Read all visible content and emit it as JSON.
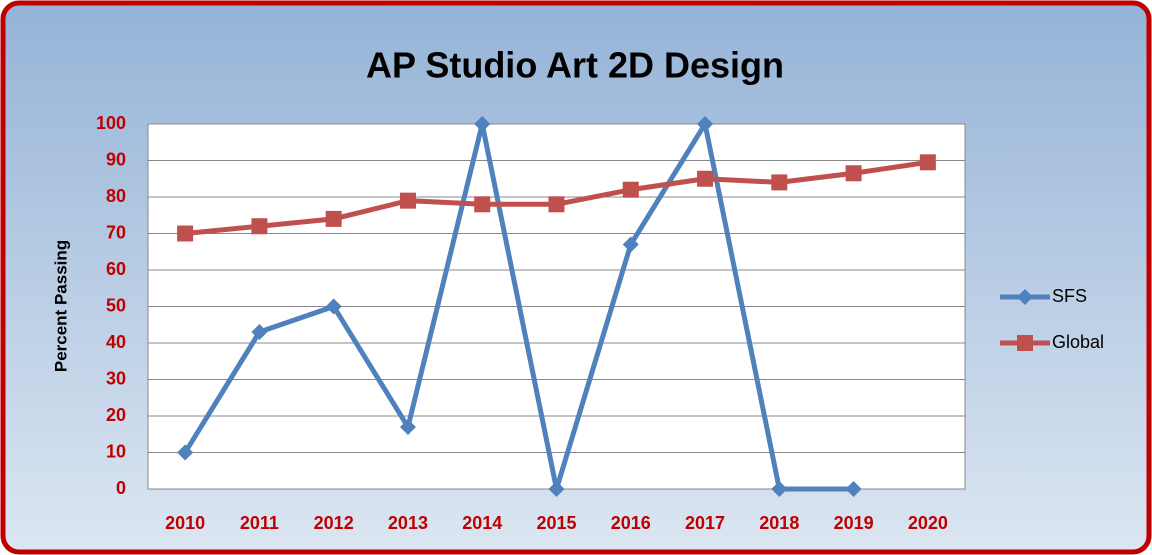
{
  "chart_data": {
    "type": "line",
    "title": "AP Studio Art 2D Design",
    "y_label": "Percent Passing",
    "categories": [
      "2010",
      "2011",
      "2012",
      "2013",
      "2014",
      "2015",
      "2016",
      "2017",
      "2018",
      "2019",
      "2020"
    ],
    "series": [
      {
        "name": "SFS",
        "color": "#4f81bd",
        "marker": "diamond",
        "values": [
          10,
          43,
          50,
          17,
          100,
          0,
          67,
          100,
          0,
          0,
          null
        ]
      },
      {
        "name": "Global",
        "color": "#c0504d",
        "marker": "square",
        "values": [
          70,
          72,
          74,
          79,
          78,
          78,
          82,
          85,
          84,
          86.5,
          89.5
        ]
      }
    ],
    "ylim": [
      0,
      100
    ],
    "yticks": [
      0,
      10,
      20,
      30,
      40,
      50,
      60,
      70,
      80,
      90,
      100
    ],
    "grid": true,
    "legend": "right"
  }
}
